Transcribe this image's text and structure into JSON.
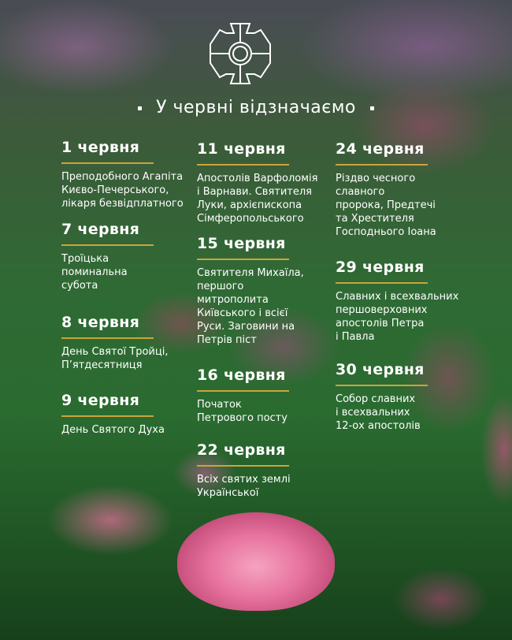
{
  "title": "У червні відзначаємо",
  "colors": {
    "accent_rule": "#c9a53a",
    "text": "#ffffff"
  },
  "emblem": "orthodox-cross-emblem",
  "events": [
    {
      "date": "1 червня",
      "text": "Преподобного Агапіта\nКиєво-Печерського,\nлікаря безвідплатного"
    },
    {
      "date": "7 червня",
      "text": "Троїцька\nпоминальна\nсубота"
    },
    {
      "date": "8 червня",
      "text": "День Святої Тройці,\nП’ятдесятниця"
    },
    {
      "date": "9 червня",
      "text": "День Святого Духа"
    },
    {
      "date": "11 червня",
      "text": "Апостолів Варфоломія\nі Варнави. Святителя\nЛуки, архієпископа\nСімферопольського"
    },
    {
      "date": "15 червня",
      "text": "Святителя Михаїла,\nпершого\nмитрополита\nКиївського і всієї\nРуси. Заговини на\nПетрів піст"
    },
    {
      "date": "16 червня",
      "text": "Початок\nПетрового посту"
    },
    {
      "date": "22 червня",
      "text": "Всіх святих землі\nУкраїнської"
    },
    {
      "date": "24 червня",
      "text": "Різдво чесного\nславного\nпророка, Предтечі\nта Хрестителя\nГосподнього Іоана"
    },
    {
      "date": "29 червня",
      "text": "Славних і всехвальних\nпершоверховних\nапостолів Петра\nі Павла"
    },
    {
      "date": "30 червня",
      "text": "Собор славних\nі всехвальних\n12-ох апостолів"
    }
  ]
}
